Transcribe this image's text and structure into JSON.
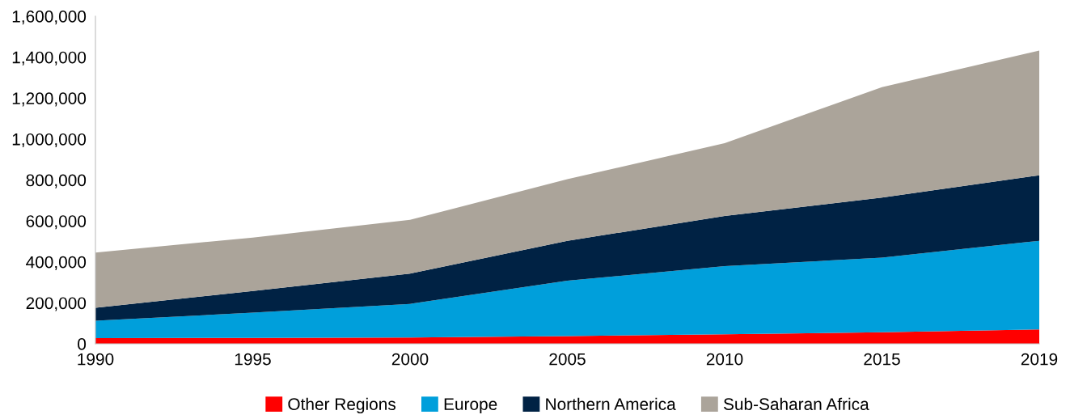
{
  "chart_data": {
    "type": "area",
    "stacked": true,
    "categories": [
      "1990",
      "1995",
      "2000",
      "2005",
      "2010",
      "2015",
      "2019"
    ],
    "series": [
      {
        "name": "Other Regions",
        "color": "#ff0000",
        "values": [
          28000,
          29000,
          31000,
          38000,
          46000,
          56000,
          70000
        ]
      },
      {
        "name": "Europe",
        "color": "#009fdb",
        "values": [
          85000,
          123000,
          164000,
          270000,
          333000,
          365000,
          433000
        ]
      },
      {
        "name": "Northern America",
        "color": "#002244",
        "values": [
          63000,
          106000,
          148000,
          195000,
          245000,
          293000,
          320000
        ]
      },
      {
        "name": "Sub-Saharan Africa",
        "color": "#aba49a",
        "values": [
          269000,
          261000,
          262000,
          301000,
          356000,
          539000,
          609000
        ]
      }
    ],
    "ylim": [
      0,
      1600000
    ],
    "yticks": [
      {
        "value": 0,
        "label": "0"
      },
      {
        "value": 200000,
        "label": "200,000"
      },
      {
        "value": 400000,
        "label": "400,000"
      },
      {
        "value": 600000,
        "label": "600,000"
      },
      {
        "value": 800000,
        "label": "800,000"
      },
      {
        "value": 1000000,
        "label": "1,000,000"
      },
      {
        "value": 1200000,
        "label": "1,200,000"
      },
      {
        "value": 1400000,
        "label": "1,400,000"
      },
      {
        "value": 1600000,
        "label": "1,600,000"
      }
    ],
    "grid": false,
    "legend": "bottom"
  }
}
